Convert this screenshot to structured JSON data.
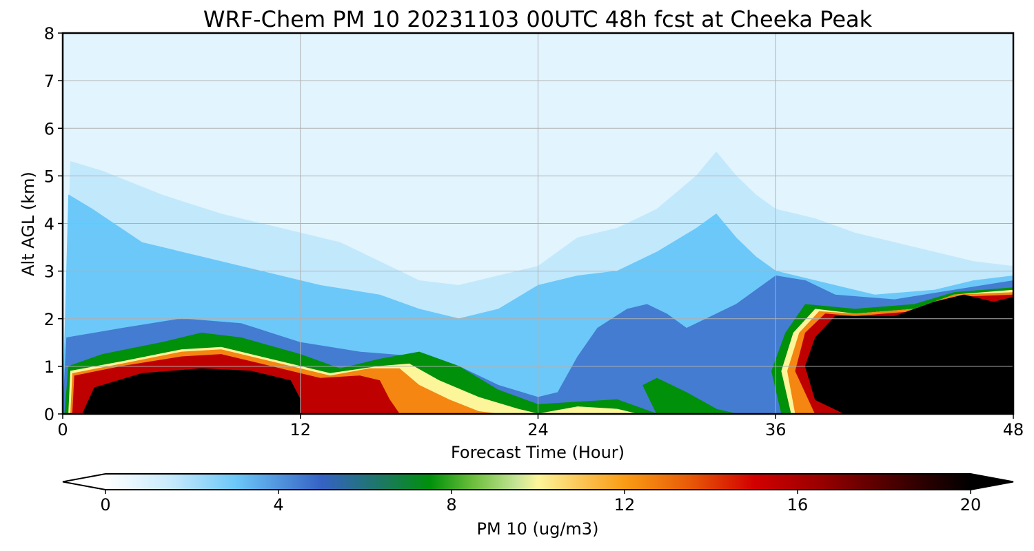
{
  "chart_data": {
    "type": "heatmap",
    "title": "WRF-Chem PM 10  20231103 00UTC 48h fcst at Cheeka Peak",
    "xlabel": "Forecast Time (Hour)",
    "ylabel": "Alt AGL (km)",
    "xlim": [
      0,
      48
    ],
    "ylim": [
      0,
      8
    ],
    "xticks": [
      0,
      12,
      24,
      36,
      48
    ],
    "yticks": [
      0,
      1,
      2,
      3,
      4,
      5,
      6,
      7,
      8
    ],
    "grid": true,
    "colorbar": {
      "label": "PM 10  (ug/m3)",
      "range": [
        0,
        20
      ],
      "ticks": [
        0,
        4,
        8,
        12,
        16,
        20
      ],
      "extend": "both",
      "colormap": [
        {
          "v": 0,
          "c": "#ffffff"
        },
        {
          "v": 1.5,
          "c": "#c8eafc"
        },
        {
          "v": 3,
          "c": "#6cc8f8"
        },
        {
          "v": 5,
          "c": "#3562c4"
        },
        {
          "v": 6.5,
          "c": "#1a7a5a"
        },
        {
          "v": 7.5,
          "c": "#00900a"
        },
        {
          "v": 8.5,
          "c": "#6cbf3c"
        },
        {
          "v": 9.5,
          "c": "#c6e596"
        },
        {
          "v": 10,
          "c": "#fcf59a"
        },
        {
          "v": 11,
          "c": "#fcc555"
        },
        {
          "v": 12,
          "c": "#fa9c15"
        },
        {
          "v": 13.5,
          "c": "#e85a08"
        },
        {
          "v": 15,
          "c": "#d20000"
        },
        {
          "v": 16.5,
          "c": "#9a0000"
        },
        {
          "v": 18.5,
          "c": "#3c0000"
        },
        {
          "v": 20,
          "c": "#000000"
        }
      ]
    },
    "regions": [
      {
        "name": "background",
        "value": 0.8
      },
      {
        "name": "upper-light-band",
        "value": 1.6
      },
      {
        "name": "mid-blue-layer",
        "value": 3.0
      },
      {
        "name": "deep-blue-band",
        "value": 4.5
      },
      {
        "name": "green-band",
        "value": 7.5
      },
      {
        "name": "yellow-band",
        "value": 10.0
      },
      {
        "name": "orange-band",
        "value": 12.5
      },
      {
        "name": "red-band",
        "value": 15.5
      },
      {
        "name": "early-core",
        "value": 20.5
      },
      {
        "name": "late-core",
        "value": 20.5
      }
    ]
  }
}
